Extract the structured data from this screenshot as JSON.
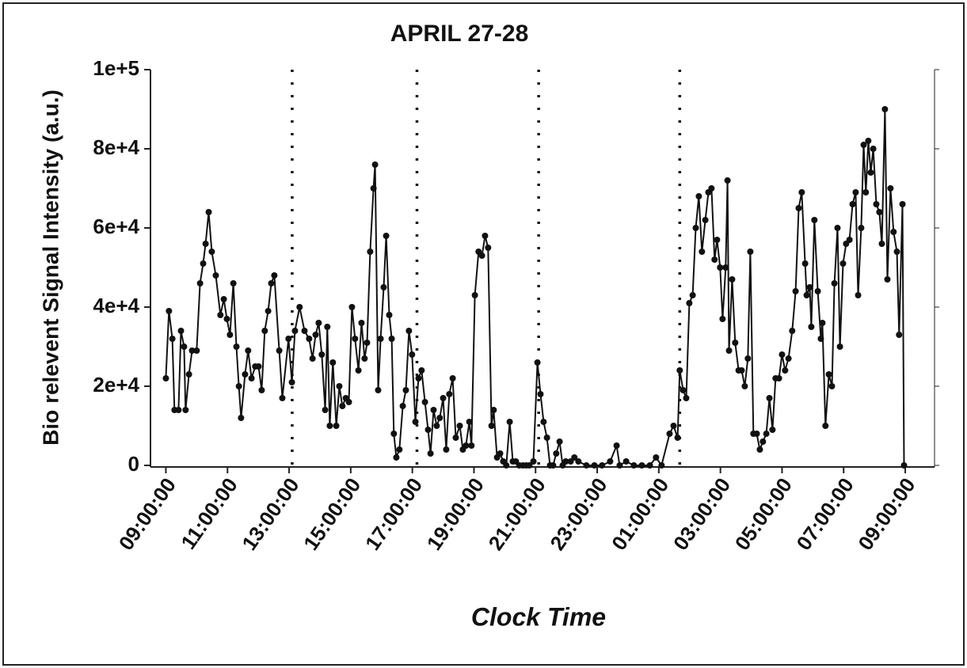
{
  "chart_data": {
    "type": "line",
    "title": "APRIL 27-28",
    "x_label": "Clock Time",
    "y_label": "Bio relevent Signal Intensity (a.u.)",
    "xlim": [
      -0.5,
      24.95
    ],
    "ylim": [
      0,
      100000
    ],
    "xticks": [
      {
        "value": 0,
        "label": "09:00:00"
      },
      {
        "value": 2,
        "label": "11:00:00"
      },
      {
        "value": 4,
        "label": "13:00:00"
      },
      {
        "value": 6,
        "label": "15:00:00"
      },
      {
        "value": 8,
        "label": "17:00:00"
      },
      {
        "value": 10,
        "label": "19:00:00"
      },
      {
        "value": 12,
        "label": "21:00:00"
      },
      {
        "value": 14,
        "label": "23:00:00"
      },
      {
        "value": 16,
        "label": "01:00:00"
      },
      {
        "value": 18,
        "label": "03:00:00"
      },
      {
        "value": 20,
        "label": "05:00:00"
      },
      {
        "value": 22,
        "label": "07:00:00"
      },
      {
        "value": 24,
        "label": "09:00:00"
      }
    ],
    "yticks": [
      0,
      {
        "value": 20000,
        "label": "2e+4"
      },
      {
        "value": 40000,
        "label": "4e+4"
      },
      {
        "value": 60000,
        "label": "6e+4"
      },
      {
        "value": 80000,
        "label": "8e+4"
      },
      {
        "value": 100000,
        "label": "1e+5"
      }
    ],
    "vlines": [
      4.1,
      8.15,
      12.1,
      16.68
    ],
    "series": [
      {
        "color": "#111111",
        "x": [
          0,
          0.1,
          0.21,
          0.28,
          0.41,
          0.49,
          0.59,
          0.64,
          0.75,
          0.85,
          1.0,
          1.11,
          1.21,
          1.29,
          1.39,
          1.49,
          1.62,
          1.77,
          1.88,
          1.98,
          2.08,
          2.19,
          2.29,
          2.37,
          2.44,
          2.57,
          2.67,
          2.78,
          2.9,
          3.01,
          3.11,
          3.21,
          3.32,
          3.42,
          3.52,
          3.68,
          3.78,
          3.98,
          4.09,
          4.19,
          4.34,
          4.5,
          4.65,
          4.76,
          4.86,
          4.96,
          5.06,
          5.17,
          5.24,
          5.32,
          5.42,
          5.53,
          5.63,
          5.73,
          5.84,
          5.94,
          6.04,
          6.14,
          6.25,
          6.35,
          6.45,
          6.53,
          6.63,
          6.74,
          6.79,
          6.89,
          6.97,
          7.07,
          7.15,
          7.25,
          7.33,
          7.4,
          7.48,
          7.58,
          7.69,
          7.79,
          7.89,
          7.99,
          8.1,
          8.2,
          8.3,
          8.41,
          8.51,
          8.59,
          8.69,
          8.79,
          8.89,
          9.0,
          9.1,
          9.2,
          9.31,
          9.41,
          9.54,
          9.64,
          9.74,
          9.85,
          9.92,
          10.03,
          10.15,
          10.26,
          10.36,
          10.46,
          10.57,
          10.64,
          10.75,
          10.85,
          10.95,
          11.05,
          11.16,
          11.26,
          11.36,
          11.47,
          11.59,
          11.7,
          11.8,
          11.93,
          12.06,
          12.16,
          12.26,
          12.37,
          12.47,
          12.57,
          12.67,
          12.78,
          12.88,
          12.98,
          13.14,
          13.26,
          13.39,
          13.65,
          13.91,
          14.16,
          14.42,
          14.63,
          14.73,
          14.94,
          15.19,
          15.45,
          15.71,
          15.91,
          16.09,
          16.35,
          16.48,
          16.61,
          16.68,
          16.79,
          16.89,
          16.99,
          17.1,
          17.2,
          17.3,
          17.4,
          17.51,
          17.61,
          17.71,
          17.81,
          17.89,
          17.99,
          18.07,
          18.17,
          18.23,
          18.28,
          18.38,
          18.48,
          18.59,
          18.69,
          18.79,
          18.89,
          18.97,
          19.07,
          19.18,
          19.28,
          19.38,
          19.49,
          19.59,
          19.69,
          19.79,
          19.9,
          20.0,
          20.1,
          20.21,
          20.33,
          20.44,
          20.54,
          20.64,
          20.75,
          20.8,
          20.9,
          20.95,
          21.05,
          21.16,
          21.26,
          21.31,
          21.41,
          21.52,
          21.62,
          21.7,
          21.8,
          21.88,
          21.98,
          22.08,
          22.19,
          22.29,
          22.39,
          22.47,
          22.57,
          22.65,
          22.72,
          22.8,
          22.88,
          22.96,
          23.06,
          23.16,
          23.24,
          23.34,
          23.42,
          23.52,
          23.62,
          23.73,
          23.8,
          23.91,
          23.96
        ],
        "values": [
          22000,
          39000,
          32000,
          14000,
          14000,
          34000,
          30000,
          14000,
          23000,
          29000,
          29000,
          46000,
          51000,
          56000,
          64000,
          54000,
          48000,
          38000,
          42000,
          37000,
          33000,
          46000,
          30000,
          20000,
          12000,
          23000,
          29000,
          22000,
          25000,
          25000,
          19000,
          34000,
          39000,
          46000,
          48000,
          29000,
          17000,
          32000,
          21000,
          34000,
          40000,
          34000,
          32000,
          27000,
          33000,
          36000,
          28000,
          14000,
          35000,
          10000,
          26000,
          10000,
          20000,
          15000,
          17000,
          16000,
          40000,
          32000,
          24000,
          36000,
          27000,
          31000,
          54000,
          70000,
          76000,
          19000,
          32000,
          45000,
          58000,
          38000,
          32000,
          8000,
          2000,
          4000,
          15000,
          19000,
          34000,
          28000,
          11000,
          22000,
          24000,
          16000,
          9000,
          3000,
          14000,
          10000,
          12000,
          17000,
          4000,
          18000,
          22000,
          7000,
          10000,
          4000,
          5000,
          11000,
          5000,
          43000,
          54000,
          53000,
          58000,
          55000,
          10000,
          14000,
          2000,
          3000,
          1000,
          0,
          11000,
          1000,
          1000,
          0,
          0,
          0,
          0,
          1000,
          26000,
          18000,
          11000,
          7000,
          0,
          0,
          3000,
          6000,
          0,
          1000,
          1000,
          2000,
          1000,
          0,
          0,
          0,
          1000,
          5000,
          0,
          1000,
          0,
          0,
          0,
          2000,
          0,
          8000,
          10000,
          7000,
          24000,
          19000,
          17000,
          41000,
          43000,
          60000,
          68000,
          54000,
          62000,
          69000,
          70000,
          52000,
          57000,
          50000,
          37000,
          50000,
          72000,
          29000,
          47000,
          31000,
          24000,
          24000,
          20000,
          27000,
          54000,
          8000,
          8000,
          4000,
          6000,
          8000,
          17000,
          9000,
          22000,
          22000,
          28000,
          24000,
          27000,
          34000,
          44000,
          65000,
          69000,
          51000,
          43000,
          45000,
          35000,
          62000,
          44000,
          32000,
          36000,
          10000,
          23000,
          20000,
          46000,
          60000,
          30000,
          51000,
          56000,
          57000,
          66000,
          69000,
          43000,
          60000,
          81000,
          69000,
          82000,
          74000,
          80000,
          66000,
          64000,
          56000,
          90000,
          47000,
          70000,
          59000,
          54000,
          33000,
          66000,
          0
        ]
      }
    ]
  }
}
